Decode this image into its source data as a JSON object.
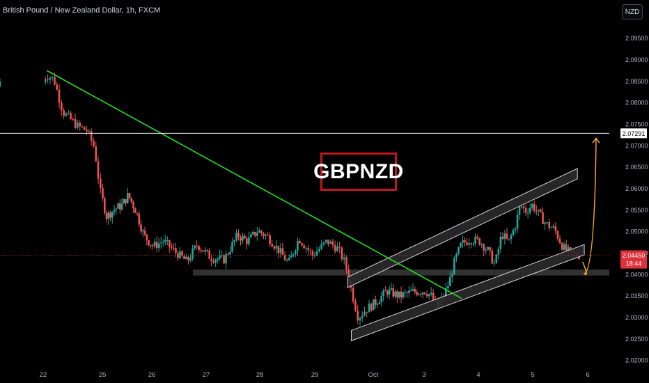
{
  "header": {
    "title": "British Pound / New Zealand Dollar, 1h, FXCM",
    "currency_button": "NZD"
  },
  "annotation": {
    "label": "GBPNZD"
  },
  "colors": {
    "up": "#26a69a",
    "down": "#ef5350",
    "trendline": "#22e022",
    "channel": "#d8d8d8",
    "target_line": "#ffffff",
    "projection": "#f5a623",
    "price_badge": "#e0303a",
    "label_border": "#c0161c"
  },
  "chart_data": {
    "type": "candlestick",
    "symbol": "GBPNZD",
    "interval": "1h",
    "ylim": [
      2.0185,
      2.1015
    ],
    "y_ticks": [
      "2.02000",
      "2.02500",
      "2.03000",
      "2.03500",
      "2.04000",
      "2.04500",
      "2.05000",
      "2.05500",
      "2.06000",
      "2.06500",
      "2.07000",
      "2.07500",
      "2.08000",
      "2.08500",
      "2.09000",
      "2.09500"
    ],
    "x_ticks": [
      {
        "label": "22",
        "index": 0
      },
      {
        "label": "25",
        "index": 1
      },
      {
        "label": "26",
        "index": 2
      },
      {
        "label": "27",
        "index": 3
      },
      {
        "label": "28",
        "index": 4
      },
      {
        "label": "29",
        "index": 5
      },
      {
        "label": "Oct",
        "index": 6
      },
      {
        "label": "3",
        "index": 7
      },
      {
        "label": "4",
        "index": 8
      },
      {
        "label": "5",
        "index": 9
      },
      {
        "label": "6",
        "index": 10
      }
    ],
    "price_path": [
      [
        0,
        2.0838
      ],
      [
        0.15,
        2.0865
      ],
      [
        0.35,
        2.0855
      ],
      [
        0.6,
        2.0778
      ],
      [
        1.0,
        2.0745
      ],
      [
        1.25,
        2.0735
      ],
      [
        1.45,
        2.0695
      ],
      [
        1.6,
        2.0595
      ],
      [
        1.8,
        2.0535
      ],
      [
        2.05,
        2.0552
      ],
      [
        2.3,
        2.0562
      ],
      [
        2.5,
        2.0585
      ],
      [
        2.75,
        2.0548
      ],
      [
        3.0,
        2.0492
      ],
      [
        3.3,
        2.0466
      ],
      [
        3.6,
        2.0478
      ],
      [
        4.0,
        2.045
      ],
      [
        4.3,
        2.043
      ],
      [
        4.6,
        2.047
      ],
      [
        5.0,
        2.044
      ],
      [
        5.4,
        2.0435
      ],
      [
        5.8,
        2.0492
      ],
      [
        6.1,
        2.0478
      ],
      [
        6.4,
        2.0502
      ],
      [
        6.7,
        2.0488
      ],
      [
        7.0,
        2.0458
      ],
      [
        7.3,
        2.0426
      ],
      [
        7.6,
        2.0485
      ],
      [
        8.0,
        2.0445
      ],
      [
        8.4,
        2.0478
      ],
      [
        8.7,
        2.046
      ],
      [
        8.9,
        2.0425
      ],
      [
        9.05,
        2.0368
      ],
      [
        9.25,
        2.03
      ],
      [
        9.45,
        2.0318
      ],
      [
        9.8,
        2.034
      ],
      [
        10.1,
        2.0362
      ],
      [
        10.5,
        2.035
      ],
      [
        10.9,
        2.036
      ],
      [
        11.3,
        2.0362
      ],
      [
        11.5,
        2.0348
      ],
      [
        11.65,
        2.0322
      ],
      [
        11.85,
        2.0352
      ],
      [
        12.0,
        2.0382
      ],
      [
        12.15,
        2.0428
      ],
      [
        12.35,
        2.047
      ],
      [
        12.6,
        2.0482
      ],
      [
        12.9,
        2.0478
      ],
      [
        13.15,
        2.0455
      ],
      [
        13.35,
        2.0422
      ],
      [
        13.55,
        2.0495
      ],
      [
        13.75,
        2.0475
      ],
      [
        13.95,
        2.0515
      ],
      [
        14.1,
        2.0562
      ],
      [
        14.25,
        2.0548
      ],
      [
        14.45,
        2.0562
      ],
      [
        14.65,
        2.054
      ],
      [
        14.85,
        2.0518
      ],
      [
        15.1,
        2.0505
      ],
      [
        15.35,
        2.0462
      ],
      [
        15.55,
        2.045
      ],
      [
        15.75,
        2.0445
      ]
    ],
    "drawings": {
      "support_zone": [
        2.0398,
        2.0412
      ],
      "target_level": 2.07291,
      "current_price": 2.0445,
      "countdown": "18:44",
      "target_label": "2.07291",
      "price_label": "2.04450",
      "downtrend_line": {
        "from": [
          0.1,
          2.0875
        ],
        "to": [
          12.3,
          2.0345
        ]
      },
      "channel_upper_band": {
        "from": [
          8.9,
          2.0382
        ],
        "to": [
          15.7,
          2.0635
        ],
        "width": 0.0012
      },
      "channel_lower_band": {
        "from": [
          9.0,
          2.0258
        ],
        "to": [
          15.9,
          2.0458
        ],
        "width": 0.0012
      }
    },
    "grid": false,
    "legend": "none"
  }
}
